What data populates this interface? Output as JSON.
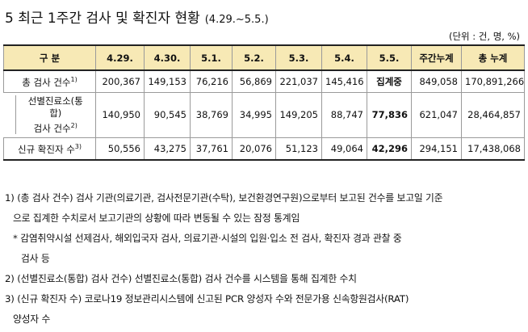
{
  "title": {
    "main": "5  최근 1주간 검사 및 확진자 현황",
    "period": "(4.29.~5.5.)"
  },
  "unit": "(단위 : 건, 명, %)",
  "table": {
    "headers": [
      "구  분",
      "4.29.",
      "4.30.",
      "5.1.",
      "5.2.",
      "5.3.",
      "5.4.",
      "5.5.",
      "주간누계",
      "총 누계"
    ],
    "rows": [
      {
        "label": "총 검사 건수",
        "sup": "1)",
        "values": [
          "200,367",
          "149,153",
          "76,216",
          "56,869",
          "221,037",
          "145,416",
          "집계중",
          "849,058",
          "170,891,266"
        ]
      },
      {
        "label_lines": [
          "선별진료소(통",
          "합)",
          "검사 건수"
        ],
        "sup": "2)",
        "values": [
          "140,950",
          "90,545",
          "38,769",
          "34,995",
          "149,205",
          "88,747",
          "77,836",
          "621,047",
          "28,464,857"
        ]
      },
      {
        "label": "신규 확진자 수",
        "sup": "3)",
        "values": [
          "50,556",
          "43,275",
          "37,761",
          "20,076",
          "51,123",
          "49,064",
          "42,296",
          "294,151",
          "17,438,068"
        ]
      }
    ]
  },
  "notes": {
    "n1_line1": "1) (총 검사 건수) 검사 기관(의료기관, 검사전문기관(수탁), 보건환경연구원)으로부터 보고된 건수를 보고일 기준",
    "n1_line2": "으로 집계한 수치로서 보고기관의 상황에 따라 변동될 수 있는 잠정 통계임",
    "n1_star_line1": "* 감염취약시설 선제검사, 해외입국자 검사, 의료기관·시설의 입원·입소 전 검사, 확진자 경과 관찰 중",
    "n1_star_line2": "검사 등",
    "n2": "2) (선별진료소(통합) 검사 건수) 선별진료소(통합) 검사 건수를 시스템을 통해 집계한 수치",
    "n3_line1": "3) (신규 확진자 수) 코로나19 정보관리시스템에 신고된 PCR 양성자 수와 전문가용 신속항원검사(RAT)",
    "n3_line2": "양성자 수"
  }
}
